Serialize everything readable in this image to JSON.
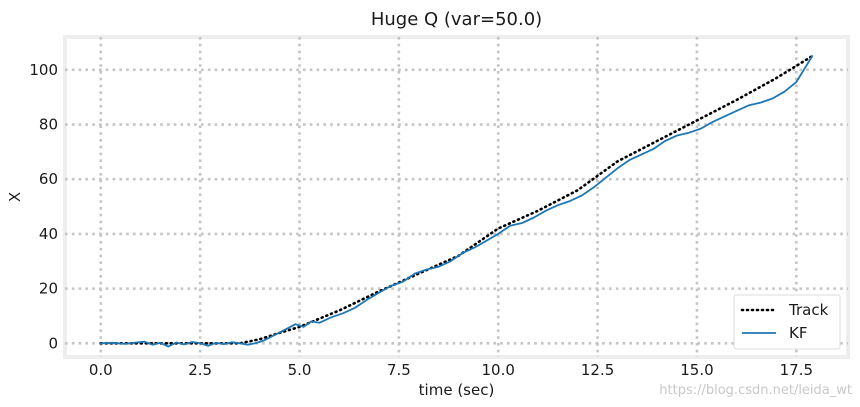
{
  "chart_data": {
    "type": "line",
    "title": "Huge Q (var=50.0)",
    "xlabel": "time (sec)",
    "ylabel": "X",
    "xlim": [
      -0.9,
      18.8
    ],
    "ylim": [
      -5,
      112
    ],
    "xticks": [
      0.0,
      2.5,
      5.0,
      7.5,
      10.0,
      12.5,
      15.0,
      17.5
    ],
    "xtick_labels": [
      "0.0",
      "2.5",
      "5.0",
      "7.5",
      "10.0",
      "12.5",
      "15.0",
      "17.5"
    ],
    "yticks": [
      0,
      20,
      40,
      60,
      80,
      100
    ],
    "ytick_labels": [
      "0",
      "20",
      "40",
      "60",
      "80",
      "100"
    ],
    "grid": true,
    "legend_position": "bottom-right",
    "series": [
      {
        "name": "Track",
        "style": "dotted",
        "color": "#000000",
        "x": [
          0.0,
          1.0,
          2.0,
          3.0,
          3.5,
          4.0,
          4.5,
          5.0,
          6.0,
          7.0,
          8.0,
          9.0,
          10.0,
          11.0,
          12.0,
          13.0,
          14.0,
          15.0,
          16.0,
          17.0,
          17.9
        ],
        "y": [
          0.0,
          0.0,
          0.0,
          0.0,
          0.0,
          1.5,
          3.8,
          6.0,
          12.0,
          19.0,
          25.5,
          32.0,
          42.0,
          48.5,
          56.0,
          66.5,
          74.0,
          81.5,
          89.0,
          97.0,
          105.0
        ]
      },
      {
        "name": "KF",
        "style": "solid",
        "color": "#1f77b4",
        "x": [
          0.0,
          0.3,
          0.6,
          0.9,
          1.1,
          1.3,
          1.5,
          1.7,
          1.9,
          2.1,
          2.3,
          2.5,
          2.7,
          2.9,
          3.1,
          3.3,
          3.5,
          3.7,
          3.9,
          4.1,
          4.3,
          4.5,
          4.7,
          4.9,
          5.1,
          5.3,
          5.5,
          5.8,
          6.1,
          6.4,
          6.7,
          7.0,
          7.3,
          7.6,
          7.9,
          8.2,
          8.5,
          8.8,
          9.1,
          9.4,
          9.7,
          10.0,
          10.3,
          10.6,
          10.9,
          11.2,
          11.5,
          11.8,
          12.1,
          12.4,
          12.7,
          13.0,
          13.3,
          13.6,
          13.9,
          14.2,
          14.5,
          14.8,
          15.1,
          15.4,
          15.7,
          16.0,
          16.3,
          16.6,
          16.9,
          17.2,
          17.5,
          17.9
        ],
        "y": [
          0.0,
          0.2,
          -0.2,
          0.3,
          0.6,
          -0.5,
          0.2,
          -1.2,
          0.3,
          -0.4,
          0.5,
          0.1,
          -0.9,
          0.2,
          -0.3,
          0.4,
          0.0,
          -0.5,
          0.1,
          1.0,
          2.5,
          4.0,
          5.5,
          7.0,
          6.0,
          8.0,
          7.5,
          9.5,
          11.0,
          13.0,
          16.0,
          18.5,
          21.0,
          22.5,
          25.5,
          27.0,
          28.0,
          30.0,
          33.0,
          35.0,
          37.5,
          40.0,
          43.0,
          44.0,
          46.0,
          48.5,
          50.5,
          52.0,
          54.0,
          57.0,
          60.5,
          64.0,
          67.0,
          69.0,
          71.0,
          74.0,
          76.0,
          77.0,
          78.5,
          81.0,
          83.0,
          85.0,
          87.0,
          88.0,
          89.5,
          92.0,
          95.5,
          105.0
        ]
      }
    ]
  },
  "watermark": "https://blog.csdn.net/leida_wt"
}
